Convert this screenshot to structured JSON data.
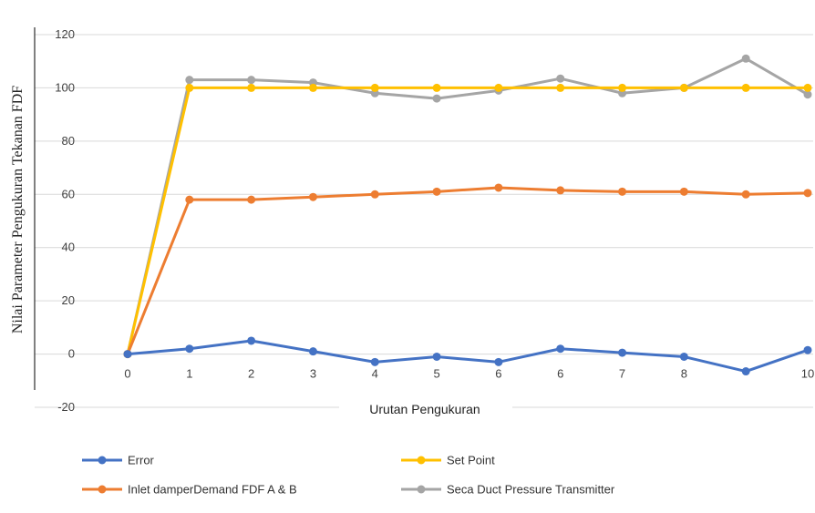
{
  "chart_data": {
    "type": "line",
    "xlabel": "Urutan Pengukuran",
    "ylabel": "Nilai Parameter Pengukuran Tekanan FDF",
    "ylim": [
      -20,
      120
    ],
    "yticks": [
      -20,
      0,
      20,
      40,
      60,
      80,
      100,
      120
    ],
    "categories": [
      "0",
      "1",
      "2",
      "3",
      "4",
      "5",
      "6",
      "6",
      "7",
      "8",
      "",
      "10"
    ],
    "grid": true,
    "legend_position": "bottom",
    "series": [
      {
        "name": "Error",
        "color": "#4472C4",
        "values": [
          0,
          2,
          5,
          1,
          -3,
          -1,
          -3,
          2,
          0.5,
          -1,
          -6.5,
          1.5
        ]
      },
      {
        "name": "Set Point",
        "color": "#FFC000",
        "values": [
          0,
          100,
          100,
          100,
          100,
          100,
          100,
          100,
          100,
          100,
          100,
          100
        ]
      },
      {
        "name": "Inlet damperDemand FDF A & B",
        "color": "#ED7D31",
        "values": [
          0,
          58,
          58,
          59,
          60,
          61,
          62.5,
          61.5,
          61,
          61,
          60,
          60.5
        ]
      },
      {
        "name": "Seca Duct Pressure Transmitter",
        "color": "#A5A5A5",
        "values": [
          0,
          103,
          103,
          102,
          98,
          96,
          99,
          103.5,
          98,
          100,
          111,
          97.5
        ]
      }
    ]
  }
}
